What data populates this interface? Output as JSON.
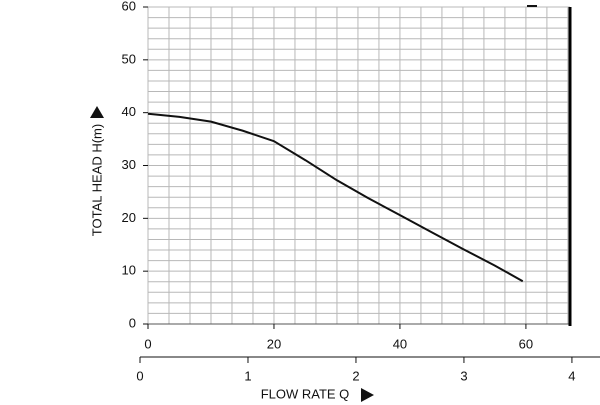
{
  "chart_data": {
    "type": "line",
    "x": [
      0,
      5,
      10,
      15,
      20,
      25,
      30,
      35,
      40,
      45,
      50,
      55,
      59.5
    ],
    "series": [
      {
        "color": "#111111",
        "values": [
          39.8,
          39.2,
          38.3,
          36.6,
          34.6,
          31.0,
          27.2,
          23.8,
          20.6,
          17.4,
          14.2,
          11.1,
          8.1
        ]
      }
    ],
    "xlim": [
      0,
      67
    ],
    "xticks": [
      0,
      20,
      40,
      60
    ],
    "ylim": [
      0,
      60
    ],
    "yticks": [
      0,
      10,
      20,
      30,
      40,
      50,
      60
    ],
    "x2lim": [
      0,
      4.26
    ],
    "x2ticks": [
      0,
      1,
      2,
      3,
      4
    ],
    "y_label": "TOTAL HEAD H(m)",
    "x_label": "FLOW RATE Q",
    "grid": true,
    "x_minor_divisions": 6,
    "y_minor_divisions": 5
  }
}
